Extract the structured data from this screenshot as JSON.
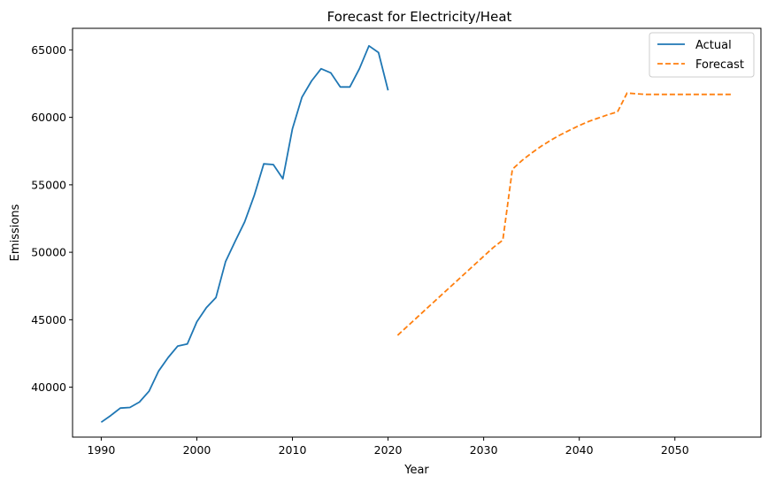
{
  "chart_data": {
    "type": "line",
    "title": "Forecast for Electricity/Heat",
    "xlabel": "Year",
    "ylabel": "Emissions",
    "xlim": [
      1987,
      2059
    ],
    "ylim": [
      36300,
      66600
    ],
    "xticks": [
      1990,
      2000,
      2010,
      2020,
      2030,
      2040,
      2050
    ],
    "yticks": [
      40000,
      45000,
      50000,
      55000,
      60000,
      65000
    ],
    "grid": false,
    "legend_position": "top-right",
    "series": [
      {
        "name": "Actual",
        "color": "#1f77b4",
        "style": "solid",
        "x": [
          1990,
          1991,
          1992,
          1993,
          1994,
          1995,
          1996,
          1997,
          1998,
          1999,
          2000,
          2001,
          2002,
          2003,
          2004,
          2005,
          2006,
          2007,
          2008,
          2009,
          2010,
          2011,
          2012,
          2013,
          2014,
          2015,
          2016,
          2017,
          2018,
          2019,
          2020
        ],
        "y": [
          37400,
          37900,
          38450,
          38500,
          38900,
          39700,
          41200,
          42200,
          43050,
          43200,
          44850,
          45900,
          46650,
          49300,
          50800,
          52250,
          54200,
          56550,
          56500,
          55450,
          59150,
          61500,
          62700,
          63600,
          63300,
          62250,
          62250,
          63600,
          65300,
          64800,
          62000
        ]
      },
      {
        "name": "Forecast",
        "color": "#ff7f0e",
        "style": "dashed",
        "x": [
          2021,
          2022,
          2023,
          2024,
          2025,
          2026,
          2027,
          2028,
          2029,
          2030,
          2031,
          2032,
          2033,
          2034,
          2035,
          2036,
          2037,
          2038,
          2039,
          2040,
          2041,
          2042,
          2043,
          2044,
          2045,
          2046,
          2047,
          2048,
          2049,
          2050,
          2051,
          2052,
          2053,
          2054,
          2055,
          2056
        ],
        "y": [
          43850,
          44500,
          45150,
          45800,
          46450,
          47100,
          47750,
          48400,
          49050,
          49700,
          50350,
          50900,
          56150,
          56800,
          57350,
          57850,
          58300,
          58700,
          59050,
          59400,
          59700,
          59950,
          60200,
          60400,
          61800,
          61750,
          61700,
          61700,
          61700,
          61700,
          61700,
          61700,
          61700,
          61700,
          61700,
          61700
        ]
      }
    ]
  }
}
